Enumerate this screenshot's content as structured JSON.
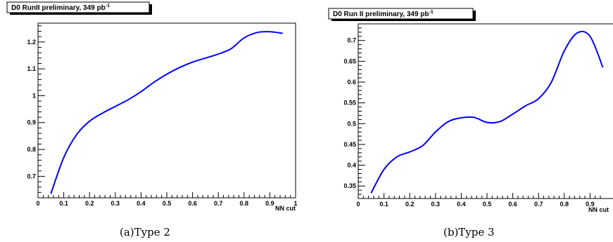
{
  "chart_data": [
    {
      "type": "line",
      "title": "D0 RunII preliminary, 349 pb",
      "title_superscript": "-1",
      "xlabel": "NN cut",
      "ylabel": "",
      "xlim": [
        0,
        1
      ],
      "ylim": [
        0.62,
        1.27
      ],
      "x_major_ticks": [
        "0",
        "0.1",
        "0.2",
        "0.3",
        "0.4",
        "0.5",
        "0.6",
        "0.7",
        "0.8",
        "0.9",
        "1"
      ],
      "y_major_ticks": [
        "0.7",
        "0.8",
        "0.9",
        "1",
        "1.1",
        "1.2"
      ],
      "grid": false,
      "line_color": "#0000ff",
      "series": [
        {
          "x": [
            0.05,
            0.1,
            0.15,
            0.2,
            0.25,
            0.3,
            0.35,
            0.4,
            0.45,
            0.5,
            0.55,
            0.6,
            0.65,
            0.7,
            0.75,
            0.8,
            0.85,
            0.9,
            0.95
          ],
          "y": [
            0.635,
            0.77,
            0.855,
            0.905,
            0.935,
            0.96,
            0.985,
            1.015,
            1.05,
            1.08,
            1.105,
            1.125,
            1.14,
            1.155,
            1.175,
            1.215,
            1.235,
            1.238,
            1.232
          ]
        }
      ],
      "caption": "(a)Type 2"
    },
    {
      "type": "line",
      "title": "D0 Run II preliminary, 349 pb",
      "title_superscript": "-1",
      "xlabel": "NN cut",
      "ylabel": "",
      "xlim": [
        0,
        1
      ],
      "ylim": [
        0.32,
        0.74
      ],
      "x_major_ticks": [
        "0",
        "0.1",
        "0.2",
        "0.3",
        "0.4",
        "0.5",
        "0.6",
        "0.7",
        "0.8",
        "0.9"
      ],
      "y_major_ticks": [
        "0.35",
        "0.4",
        "0.45",
        "0.5",
        "0.55",
        "0.6",
        "0.65",
        "0.7"
      ],
      "grid": false,
      "line_color": "#0000ff",
      "series": [
        {
          "x": [
            0.05,
            0.1,
            0.15,
            0.2,
            0.25,
            0.3,
            0.35,
            0.4,
            0.45,
            0.5,
            0.55,
            0.6,
            0.65,
            0.7,
            0.75,
            0.8,
            0.85,
            0.9,
            0.95
          ],
          "y": [
            0.333,
            0.39,
            0.42,
            0.432,
            0.447,
            0.48,
            0.505,
            0.514,
            0.515,
            0.503,
            0.505,
            0.523,
            0.543,
            0.56,
            0.6,
            0.675,
            0.718,
            0.71,
            0.635
          ]
        }
      ],
      "caption": "(b)Type 3"
    }
  ]
}
